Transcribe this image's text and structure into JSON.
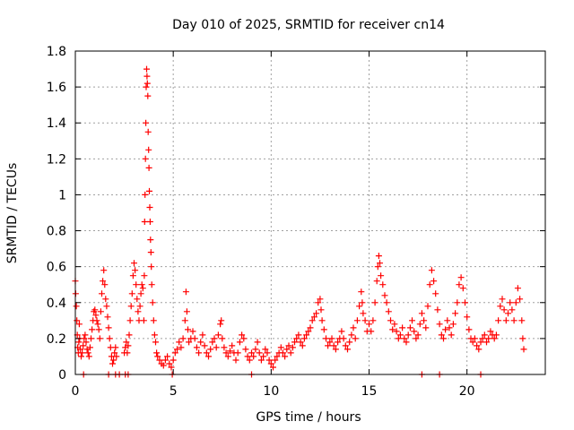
{
  "chart_data": {
    "type": "scatter",
    "title": "Day 010 of 2025, SRMTID for receiver cn14",
    "xlabel": "GPS time / hours",
    "ylabel": "SRMTID / TECUs",
    "xlim": [
      0,
      24
    ],
    "ylim": [
      0,
      1.8
    ],
    "xticks": [
      0,
      5,
      10,
      15,
      20
    ],
    "xtick_labels": [
      "0",
      "5",
      "10",
      "15",
      "20"
    ],
    "yticks": [
      0,
      0.2,
      0.4,
      0.6,
      0.8,
      1.0,
      1.2,
      1.4,
      1.6,
      1.8
    ],
    "ytick_labels": [
      "0",
      "0.2",
      "0.4",
      "0.6",
      "0.8",
      "1",
      "1.2",
      "1.4",
      "1.6",
      "1.8"
    ],
    "grid": true,
    "marker": "+",
    "series": [
      {
        "name": "SRMTID",
        "color": "#ff0000",
        "points": [
          [
            0.0,
            0.52
          ],
          [
            0.02,
            0.45
          ],
          [
            0.05,
            0.38
          ],
          [
            0.08,
            0.3
          ],
          [
            0.1,
            0.22
          ],
          [
            0.12,
            0.15
          ],
          [
            0.15,
            0.12
          ],
          [
            0.18,
            0.18
          ],
          [
            0.2,
            0.28
          ],
          [
            0.22,
            0.2
          ],
          [
            0.25,
            0.14
          ],
          [
            0.3,
            0.1
          ],
          [
            0.35,
            0.12
          ],
          [
            0.4,
            0.16
          ],
          [
            0.45,
            0.2
          ],
          [
            0.5,
            0.22
          ],
          [
            0.55,
            0.18
          ],
          [
            0.6,
            0.14
          ],
          [
            0.65,
            0.12
          ],
          [
            0.7,
            0.1
          ],
          [
            0.75,
            0.15
          ],
          [
            0.8,
            0.2
          ],
          [
            0.85,
            0.25
          ],
          [
            0.9,
            0.3
          ],
          [
            0.95,
            0.35
          ],
          [
            1.0,
            0.36
          ],
          [
            1.05,
            0.33
          ],
          [
            1.1,
            0.3
          ],
          [
            1.15,
            0.28
          ],
          [
            1.2,
            0.25
          ],
          [
            1.25,
            0.2
          ],
          [
            1.3,
            0.35
          ],
          [
            1.35,
            0.45
          ],
          [
            1.4,
            0.52
          ],
          [
            1.45,
            0.58
          ],
          [
            1.5,
            0.5
          ],
          [
            1.55,
            0.42
          ],
          [
            1.6,
            0.38
          ],
          [
            1.65,
            0.32
          ],
          [
            1.7,
            0.26
          ],
          [
            1.75,
            0.2
          ],
          [
            1.8,
            0.15
          ],
          [
            1.85,
            0.1
          ],
          [
            1.9,
            0.06
          ],
          [
            1.95,
            0.08
          ],
          [
            2.0,
            0.12
          ],
          [
            2.05,
            0.15
          ],
          [
            2.1,
            0.1
          ],
          [
            0.42,
            0.0
          ],
          [
            1.7,
            0.0
          ],
          [
            2.05,
            0.0
          ],
          [
            2.25,
            0.0
          ],
          [
            2.55,
            0.0
          ],
          [
            2.7,
            0.0
          ],
          [
            2.5,
            0.12
          ],
          [
            2.55,
            0.15
          ],
          [
            2.6,
            0.18
          ],
          [
            2.65,
            0.12
          ],
          [
            2.7,
            0.16
          ],
          [
            2.75,
            0.22
          ],
          [
            2.8,
            0.3
          ],
          [
            2.85,
            0.38
          ],
          [
            2.9,
            0.45
          ],
          [
            2.95,
            0.55
          ],
          [
            3.0,
            0.62
          ],
          [
            3.05,
            0.58
          ],
          [
            3.1,
            0.5
          ],
          [
            3.15,
            0.42
          ],
          [
            3.2,
            0.35
          ],
          [
            3.25,
            0.3
          ],
          [
            3.3,
            0.38
          ],
          [
            3.35,
            0.45
          ],
          [
            3.4,
            0.5
          ],
          [
            3.45,
            0.48
          ],
          [
            3.5,
            0.3
          ],
          [
            3.52,
            0.55
          ],
          [
            3.54,
            0.85
          ],
          [
            3.56,
            1.0
          ],
          [
            3.58,
            1.2
          ],
          [
            3.6,
            1.4
          ],
          [
            3.62,
            1.6
          ],
          [
            3.64,
            1.7
          ],
          [
            3.66,
            1.66
          ],
          [
            3.68,
            1.62
          ],
          [
            3.7,
            1.55
          ],
          [
            3.72,
            1.35
          ],
          [
            3.74,
            1.25
          ],
          [
            3.76,
            1.15
          ],
          [
            3.78,
            1.02
          ],
          [
            3.8,
            0.93
          ],
          [
            3.82,
            0.85
          ],
          [
            3.84,
            0.75
          ],
          [
            3.86,
            0.68
          ],
          [
            3.88,
            0.6
          ],
          [
            3.9,
            0.5
          ],
          [
            3.95,
            0.4
          ],
          [
            4.0,
            0.3
          ],
          [
            4.05,
            0.22
          ],
          [
            4.1,
            0.18
          ],
          [
            4.15,
            0.12
          ],
          [
            4.2,
            0.1
          ],
          [
            4.3,
            0.08
          ],
          [
            4.4,
            0.06
          ],
          [
            4.5,
            0.05
          ],
          [
            4.6,
            0.08
          ],
          [
            4.7,
            0.1
          ],
          [
            4.8,
            0.06
          ],
          [
            4.9,
            0.04
          ],
          [
            5.0,
            0.08
          ],
          [
            5.1,
            0.12
          ],
          [
            5.2,
            0.14
          ],
          [
            5.3,
            0.18
          ],
          [
            5.4,
            0.15
          ],
          [
            5.5,
            0.2
          ],
          [
            5.6,
            0.3
          ],
          [
            5.65,
            0.46
          ],
          [
            5.7,
            0.35
          ],
          [
            5.75,
            0.25
          ],
          [
            5.8,
            0.18
          ],
          [
            5.9,
            0.2
          ],
          [
            6.0,
            0.24
          ],
          [
            6.1,
            0.2
          ],
          [
            6.2,
            0.15
          ],
          [
            6.3,
            0.12
          ],
          [
            6.4,
            0.18
          ],
          [
            6.5,
            0.22
          ],
          [
            6.6,
            0.16
          ],
          [
            6.7,
            0.12
          ],
          [
            6.8,
            0.1
          ],
          [
            6.9,
            0.14
          ],
          [
            7.0,
            0.18
          ],
          [
            7.1,
            0.2
          ],
          [
            7.2,
            0.15
          ],
          [
            7.3,
            0.22
          ],
          [
            7.4,
            0.28
          ],
          [
            7.45,
            0.3
          ],
          [
            7.5,
            0.2
          ],
          [
            7.6,
            0.15
          ],
          [
            7.7,
            0.12
          ],
          [
            7.8,
            0.1
          ],
          [
            7.9,
            0.13
          ],
          [
            8.0,
            0.16
          ],
          [
            8.1,
            0.12
          ],
          [
            8.2,
            0.08
          ],
          [
            8.3,
            0.12
          ],
          [
            8.4,
            0.18
          ],
          [
            8.5,
            0.22
          ],
          [
            8.6,
            0.2
          ],
          [
            8.7,
            0.14
          ],
          [
            8.8,
            0.1
          ],
          [
            8.9,
            0.08
          ],
          [
            9.0,
            0.12
          ],
          [
            9.1,
            0.1
          ],
          [
            9.2,
            0.14
          ],
          [
            9.3,
            0.18
          ],
          [
            9.4,
            0.12
          ],
          [
            9.5,
            0.08
          ],
          [
            9.6,
            0.1
          ],
          [
            9.7,
            0.14
          ],
          [
            9.8,
            0.12
          ],
          [
            9.9,
            0.08
          ],
          [
            10.0,
            0.06
          ],
          [
            10.1,
            0.04
          ],
          [
            10.2,
            0.08
          ],
          [
            10.3,
            0.1
          ],
          [
            10.4,
            0.12
          ],
          [
            10.5,
            0.15
          ],
          [
            10.6,
            0.12
          ],
          [
            10.7,
            0.1
          ],
          [
            10.8,
            0.14
          ],
          [
            10.9,
            0.16
          ],
          [
            11.0,
            0.12
          ],
          [
            11.1,
            0.15
          ],
          [
            11.2,
            0.18
          ],
          [
            11.3,
            0.2
          ],
          [
            11.4,
            0.22
          ],
          [
            11.5,
            0.18
          ],
          [
            11.6,
            0.16
          ],
          [
            11.7,
            0.2
          ],
          [
            11.8,
            0.22
          ],
          [
            11.9,
            0.24
          ],
          [
            12.0,
            0.26
          ],
          [
            12.1,
            0.3
          ],
          [
            12.2,
            0.32
          ],
          [
            12.3,
            0.34
          ],
          [
            12.4,
            0.4
          ],
          [
            12.5,
            0.42
          ],
          [
            12.55,
            0.36
          ],
          [
            12.6,
            0.3
          ],
          [
            12.7,
            0.25
          ],
          [
            12.8,
            0.2
          ],
          [
            12.9,
            0.16
          ],
          [
            13.0,
            0.18
          ],
          [
            13.1,
            0.2
          ],
          [
            13.2,
            0.16
          ],
          [
            13.3,
            0.14
          ],
          [
            13.4,
            0.18
          ],
          [
            13.5,
            0.2
          ],
          [
            13.6,
            0.24
          ],
          [
            13.7,
            0.2
          ],
          [
            13.8,
            0.16
          ],
          [
            13.9,
            0.14
          ],
          [
            14.0,
            0.18
          ],
          [
            14.1,
            0.22
          ],
          [
            14.2,
            0.26
          ],
          [
            14.3,
            0.2
          ],
          [
            14.4,
            0.3
          ],
          [
            14.5,
            0.38
          ],
          [
            14.6,
            0.46
          ],
          [
            14.65,
            0.4
          ],
          [
            14.7,
            0.34
          ],
          [
            14.8,
            0.3
          ],
          [
            14.9,
            0.24
          ],
          [
            15.0,
            0.28
          ],
          [
            15.1,
            0.24
          ],
          [
            15.2,
            0.3
          ],
          [
            15.3,
            0.4
          ],
          [
            15.4,
            0.52
          ],
          [
            15.45,
            0.6
          ],
          [
            15.5,
            0.66
          ],
          [
            15.55,
            0.62
          ],
          [
            15.6,
            0.55
          ],
          [
            15.7,
            0.5
          ],
          [
            15.8,
            0.44
          ],
          [
            15.9,
            0.4
          ],
          [
            16.0,
            0.35
          ],
          [
            16.1,
            0.3
          ],
          [
            16.2,
            0.25
          ],
          [
            16.3,
            0.28
          ],
          [
            16.4,
            0.24
          ],
          [
            16.5,
            0.2
          ],
          [
            16.6,
            0.22
          ],
          [
            16.7,
            0.26
          ],
          [
            16.8,
            0.2
          ],
          [
            16.9,
            0.18
          ],
          [
            17.0,
            0.22
          ],
          [
            17.1,
            0.26
          ],
          [
            17.2,
            0.3
          ],
          [
            17.3,
            0.24
          ],
          [
            17.4,
            0.2
          ],
          [
            17.5,
            0.22
          ],
          [
            17.6,
            0.28
          ],
          [
            17.7,
            0.34
          ],
          [
            17.8,
            0.3
          ],
          [
            17.9,
            0.26
          ],
          [
            18.0,
            0.38
          ],
          [
            18.1,
            0.5
          ],
          [
            18.2,
            0.58
          ],
          [
            18.3,
            0.52
          ],
          [
            18.4,
            0.45
          ],
          [
            18.5,
            0.36
          ],
          [
            18.6,
            0.28
          ],
          [
            18.7,
            0.22
          ],
          [
            18.8,
            0.2
          ],
          [
            18.9,
            0.25
          ],
          [
            19.0,
            0.3
          ],
          [
            19.1,
            0.26
          ],
          [
            19.2,
            0.22
          ],
          [
            19.3,
            0.28
          ],
          [
            19.4,
            0.34
          ],
          [
            19.5,
            0.4
          ],
          [
            19.6,
            0.5
          ],
          [
            19.7,
            0.54
          ],
          [
            19.8,
            0.48
          ],
          [
            19.9,
            0.4
          ],
          [
            20.0,
            0.32
          ],
          [
            20.1,
            0.25
          ],
          [
            20.2,
            0.2
          ],
          [
            20.3,
            0.18
          ],
          [
            20.4,
            0.2
          ],
          [
            20.5,
            0.16
          ],
          [
            20.6,
            0.14
          ],
          [
            20.7,
            0.18
          ],
          [
            20.8,
            0.2
          ],
          [
            20.9,
            0.22
          ],
          [
            21.0,
            0.18
          ],
          [
            21.1,
            0.2
          ],
          [
            21.2,
            0.24
          ],
          [
            21.3,
            0.22
          ],
          [
            21.4,
            0.2
          ],
          [
            21.5,
            0.22
          ],
          [
            21.6,
            0.3
          ],
          [
            21.7,
            0.38
          ],
          [
            21.8,
            0.42
          ],
          [
            21.9,
            0.36
          ],
          [
            22.0,
            0.3
          ],
          [
            22.1,
            0.34
          ],
          [
            22.2,
            0.4
          ],
          [
            22.3,
            0.36
          ],
          [
            22.4,
            0.3
          ],
          [
            22.5,
            0.4
          ],
          [
            22.6,
            0.48
          ],
          [
            22.7,
            0.42
          ],
          [
            22.8,
            0.3
          ],
          [
            22.85,
            0.2
          ],
          [
            22.9,
            0.14
          ],
          [
            4.95,
            0.0
          ],
          [
            9.0,
            0.0
          ],
          [
            17.7,
            0.0
          ],
          [
            18.6,
            0.0
          ],
          [
            20.7,
            0.0
          ]
        ]
      }
    ]
  }
}
